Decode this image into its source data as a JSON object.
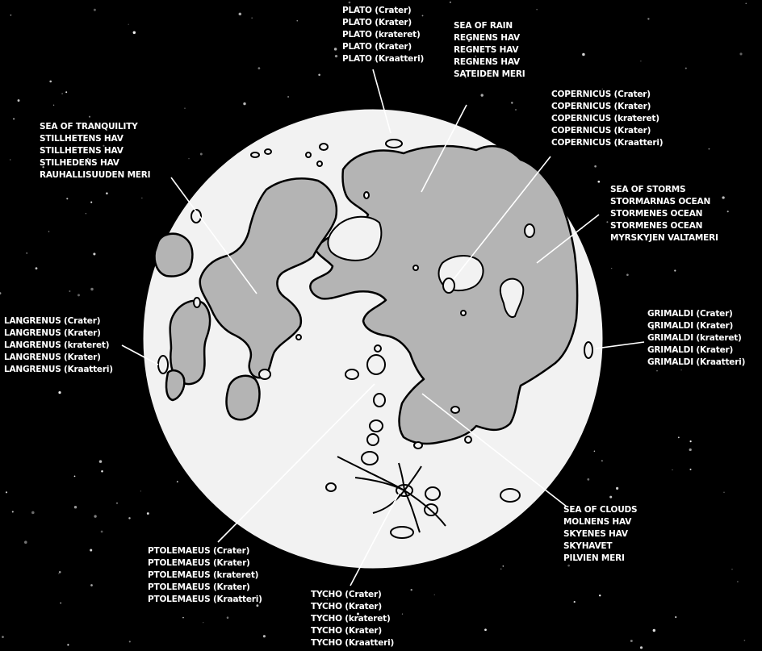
{
  "colors": {
    "background": "#000000",
    "moon_surface": "#f2f2f2",
    "maria": "#b4b4b4",
    "outline": "#000000",
    "text": "#ffffff",
    "leader_line": "#ffffff"
  },
  "labels": {
    "plato": {
      "lines": [
        "PLATO (Crater)",
        "PLATO (Krater)",
        "PLATO (krateret)",
        "PLATO (Krater)",
        "PLATO (Kraatteri)"
      ]
    },
    "sea_of_rain": {
      "lines": [
        "SEA OF RAIN",
        "REGNENS HAV",
        "REGNETS HAV",
        "REGNENS HAV",
        "SATEIDEN MERI"
      ]
    },
    "copernicus": {
      "lines": [
        "COPERNICUS (Crater)",
        "COPERNICUS (Krater)",
        "COPERNICUS (krateret)",
        "COPERNICUS (Krater)",
        "COPERNICUS (Kraatteri)"
      ]
    },
    "sea_of_tranquility": {
      "lines": [
        "SEA OF TRANQUILITY",
        "STILLHETENS HAV",
        "STILLHETENS HAV",
        "STILHEDENS HAV",
        "RAUHALLISUUDEN MERI"
      ]
    },
    "sea_of_storms": {
      "lines": [
        "SEA OF STORMS",
        "STORMARNAS OCEAN",
        "STORMENES OCEAN",
        "STORMENES OCEAN",
        "MYRSKYJEN VALTAMERI"
      ]
    },
    "langrenus": {
      "lines": [
        "LANGRENUS (Crater)",
        "LANGRENUS (Krater)",
        "LANGRENUS (krateret)",
        "LANGRENUS (Krater)",
        "LANGRENUS (Kraatteri)"
      ]
    },
    "grimaldi": {
      "lines": [
        "GRIMALDI (Crater)",
        "GRIMALDI (Krater)",
        "GRIMALDI (krateret)",
        "GRIMALDI (Krater)",
        "GRIMALDI (Kraatteri)"
      ]
    },
    "sea_of_clouds": {
      "lines": [
        "SEA OF CLOUDS",
        "MOLNENS HAV",
        "SKYENES HAV",
        "SKYHAVET",
        "PILVIEN MERI"
      ]
    },
    "ptolemaeus": {
      "lines": [
        "PTOLEMAEUS (Crater)",
        "PTOLEMAEUS (Krater)",
        "PTOLEMAEUS (krateret)",
        "PTOLEMAEUS (Krater)",
        "PTOLEMAEUS (Kraatteri)"
      ]
    },
    "tycho": {
      "lines": [
        "TYCHO (Crater)",
        "TYCHO (Krater)",
        "TYCHO (krateret)",
        "TYCHO (Krater)",
        "TYCHO (Kraatteri)"
      ]
    }
  }
}
